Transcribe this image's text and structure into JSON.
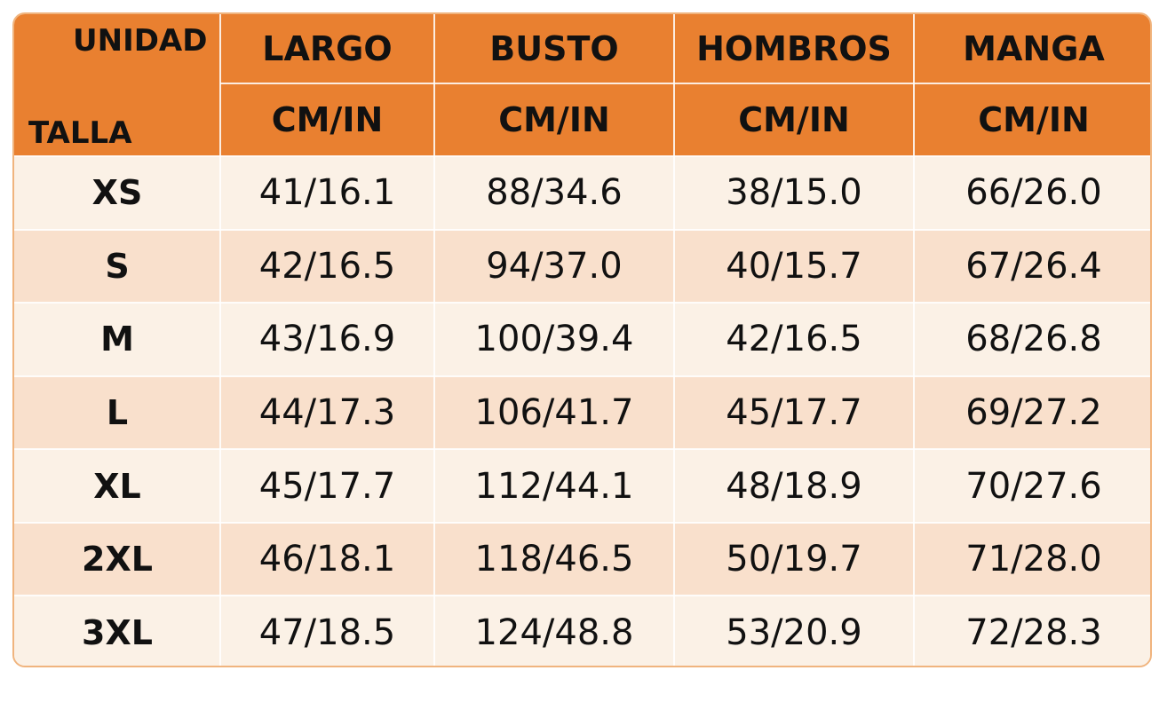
{
  "header": {
    "corner_top": "UNIDAD",
    "corner_bottom": "TALLA",
    "columns": [
      "LARGO",
      "BUSTO",
      "HOMBROS",
      "MANGA"
    ],
    "units": [
      "CM/IN",
      "CM/IN",
      "CM/IN",
      "CM/IN"
    ]
  },
  "table": {
    "rows": [
      [
        "XS",
        "41/16.1",
        "88/34.6",
        "38/15.0",
        "66/26.0"
      ],
      [
        "S",
        "42/16.5",
        "94/37.0",
        "40/15.7",
        "67/26.4"
      ],
      [
        "M",
        "43/16.9",
        "100/39.4",
        "42/16.5",
        "68/26.8"
      ],
      [
        "L",
        "44/17.3",
        "106/41.7",
        "45/17.7",
        "69/27.2"
      ],
      [
        "XL",
        "45/17.7",
        "112/44.1",
        "48/18.9",
        "70/27.6"
      ],
      [
        "2XL",
        "46/18.1",
        "118/46.5",
        "50/19.7",
        "71/28.0"
      ],
      [
        "3XL",
        "47/18.5",
        "124/48.8",
        "53/20.9",
        "72/28.3"
      ]
    ]
  }
}
